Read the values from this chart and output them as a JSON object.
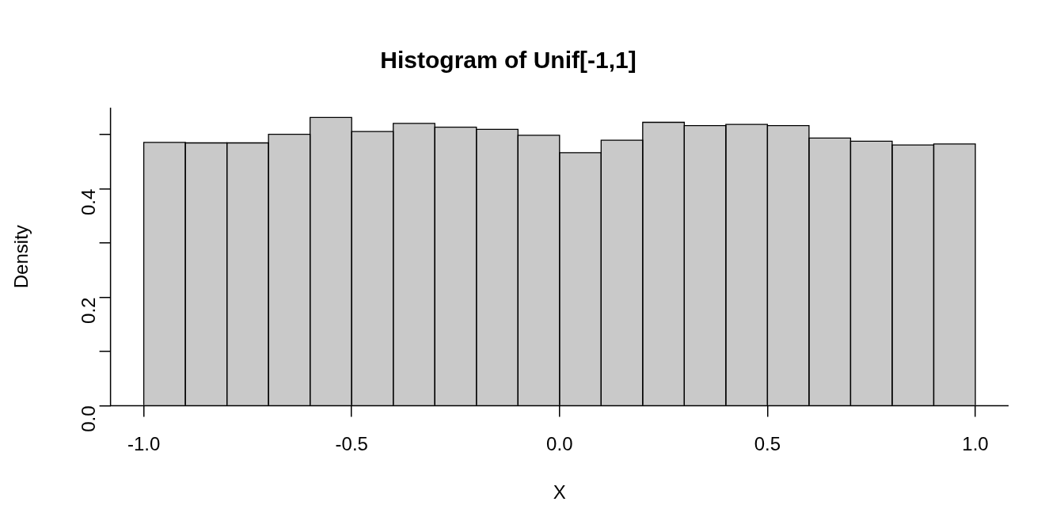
{
  "chart_data": {
    "type": "histogram",
    "title": "Histogram of Unif[-1,1]",
    "xlabel": "X",
    "ylabel": "Density",
    "bins": [
      -1.0,
      -0.9,
      -0.8,
      -0.7,
      -0.6,
      -0.5,
      -0.4,
      -0.3,
      -0.2,
      -0.1,
      0.0,
      0.1,
      0.2,
      0.3,
      0.4,
      0.5,
      0.6,
      0.7,
      0.8,
      0.9,
      1.0
    ],
    "values": [
      0.486,
      0.485,
      0.485,
      0.501,
      0.532,
      0.506,
      0.521,
      0.514,
      0.51,
      0.499,
      0.467,
      0.49,
      0.523,
      0.517,
      0.519,
      0.517,
      0.494,
      0.488,
      0.481,
      0.483
    ],
    "color": "#c9c9c9",
    "xlim": [
      -1.08,
      1.08
    ],
    "ylim": [
      0,
      0.55
    ],
    "xticks": [
      {
        "value": -1,
        "label": "-1.0"
      },
      -0.5,
      {
        "value": 0,
        "label": "0.0"
      },
      0.5,
      {
        "value": 1,
        "label": "1.0"
      }
    ],
    "yticks": [
      {
        "value": 0,
        "label": "0.0"
      },
      {
        "value": 0.1,
        "label": null
      },
      0.2,
      {
        "value": 0.3,
        "label": null
      },
      0.4,
      {
        "value": 0.5,
        "label": null
      }
    ]
  }
}
